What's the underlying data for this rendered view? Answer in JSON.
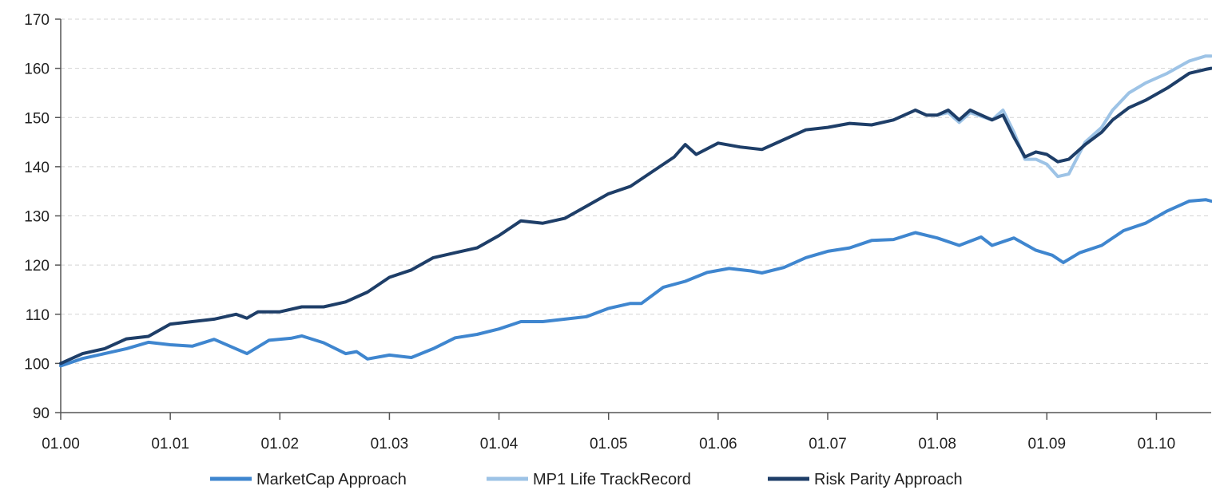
{
  "chart_data": {
    "type": "line",
    "title": "",
    "xlabel": "",
    "ylabel": "",
    "ylim": [
      90,
      170
    ],
    "yticks": [
      90,
      100,
      110,
      120,
      130,
      140,
      150,
      160,
      170
    ],
    "xlim": [
      0,
      10.5
    ],
    "xtick_values": [
      0,
      1,
      2,
      3,
      4,
      5,
      6,
      7,
      8,
      9,
      10
    ],
    "xtick_labels": [
      "01.00",
      "01.01",
      "01.02",
      "01.03",
      "01.04",
      "01.05",
      "01.06",
      "01.07",
      "01.08",
      "01.09",
      "01.10"
    ],
    "grid": "horizontal dashed",
    "legend_position": "bottom",
    "series": [
      {
        "name": "MarketCap Approach",
        "color": "#3f86cf",
        "points": [
          [
            0,
            99.5
          ],
          [
            0.2,
            101
          ],
          [
            0.4,
            102
          ],
          [
            0.6,
            103
          ],
          [
            0.8,
            104.3
          ],
          [
            1,
            103.8
          ],
          [
            1.2,
            103.5
          ],
          [
            1.4,
            104.9
          ],
          [
            1.7,
            102
          ],
          [
            1.9,
            104.7
          ],
          [
            2.1,
            105.1
          ],
          [
            2.2,
            105.6
          ],
          [
            2.4,
            104.2
          ],
          [
            2.6,
            102
          ],
          [
            2.7,
            102.4
          ],
          [
            2.8,
            100.9
          ],
          [
            3,
            101.7
          ],
          [
            3.2,
            101.2
          ],
          [
            3.4,
            103
          ],
          [
            3.6,
            105.2
          ],
          [
            3.8,
            105.9
          ],
          [
            4,
            107
          ],
          [
            4.2,
            108.5
          ],
          [
            4.4,
            108.5
          ],
          [
            4.6,
            109
          ],
          [
            4.8,
            109.5
          ],
          [
            5,
            111.2
          ],
          [
            5.2,
            112.2
          ],
          [
            5.3,
            112.2
          ],
          [
            5.5,
            115.5
          ],
          [
            5.7,
            116.7
          ],
          [
            5.9,
            118.5
          ],
          [
            6.1,
            119.3
          ],
          [
            6.3,
            118.8
          ],
          [
            6.4,
            118.4
          ],
          [
            6.6,
            119.5
          ],
          [
            6.8,
            121.5
          ],
          [
            7,
            122.8
          ],
          [
            7.2,
            123.5
          ],
          [
            7.4,
            125
          ],
          [
            7.6,
            125.2
          ],
          [
            7.8,
            126.6
          ],
          [
            8,
            125.5
          ],
          [
            8.2,
            124
          ],
          [
            8.4,
            125.7
          ],
          [
            8.5,
            124
          ],
          [
            8.7,
            125.5
          ],
          [
            8.9,
            123
          ],
          [
            9.05,
            122
          ],
          [
            9.15,
            120.5
          ],
          [
            9.3,
            122.5
          ],
          [
            9.5,
            124
          ],
          [
            9.7,
            127
          ],
          [
            9.9,
            128.5
          ],
          [
            10.1,
            131
          ],
          [
            10.3,
            133
          ],
          [
            10.45,
            133.3
          ],
          [
            10.5,
            133
          ]
        ]
      },
      {
        "name": "MP1 Life TrackRecord",
        "color": "#9dc3e6",
        "points": [
          [
            8.0,
            150.5
          ],
          [
            8.1,
            151
          ],
          [
            8.2,
            149
          ],
          [
            8.3,
            151
          ],
          [
            8.5,
            149.5
          ],
          [
            8.6,
            151.5
          ],
          [
            8.7,
            147
          ],
          [
            8.8,
            141.5
          ],
          [
            8.9,
            141.5
          ],
          [
            9.0,
            140.5
          ],
          [
            9.1,
            138
          ],
          [
            9.2,
            138.5
          ],
          [
            9.35,
            145
          ],
          [
            9.5,
            148
          ],
          [
            9.6,
            151.5
          ],
          [
            9.75,
            155
          ],
          [
            9.9,
            157
          ],
          [
            10.1,
            159
          ],
          [
            10.3,
            161.5
          ],
          [
            10.45,
            162.5
          ],
          [
            10.5,
            162.5
          ]
        ]
      },
      {
        "name": "Risk Parity Approach",
        "color": "#1e3e68",
        "points": [
          [
            0,
            100
          ],
          [
            0.2,
            102
          ],
          [
            0.4,
            103
          ],
          [
            0.6,
            105
          ],
          [
            0.8,
            105.5
          ],
          [
            1,
            108
          ],
          [
            1.2,
            108.5
          ],
          [
            1.4,
            109
          ],
          [
            1.6,
            110
          ],
          [
            1.7,
            109.2
          ],
          [
            1.8,
            110.5
          ],
          [
            2,
            110.5
          ],
          [
            2.2,
            111.5
          ],
          [
            2.4,
            111.5
          ],
          [
            2.6,
            112.5
          ],
          [
            2.8,
            114.5
          ],
          [
            3,
            117.5
          ],
          [
            3.2,
            119
          ],
          [
            3.4,
            121.5
          ],
          [
            3.6,
            122.5
          ],
          [
            3.8,
            123.5
          ],
          [
            4,
            126
          ],
          [
            4.2,
            129
          ],
          [
            4.4,
            128.5
          ],
          [
            4.6,
            129.5
          ],
          [
            4.8,
            132
          ],
          [
            5,
            134.5
          ],
          [
            5.2,
            136
          ],
          [
            5.4,
            139
          ],
          [
            5.6,
            142
          ],
          [
            5.7,
            144.5
          ],
          [
            5.8,
            142.5
          ],
          [
            6,
            144.8
          ],
          [
            6.2,
            144
          ],
          [
            6.4,
            143.5
          ],
          [
            6.6,
            145.5
          ],
          [
            6.8,
            147.5
          ],
          [
            7,
            148
          ],
          [
            7.2,
            148.8
          ],
          [
            7.4,
            148.5
          ],
          [
            7.6,
            149.5
          ],
          [
            7.8,
            151.5
          ],
          [
            7.9,
            150.5
          ],
          [
            8.0,
            150.5
          ],
          [
            8.1,
            151.5
          ],
          [
            8.2,
            149.5
          ],
          [
            8.3,
            151.5
          ],
          [
            8.5,
            149.5
          ],
          [
            8.6,
            150.5
          ],
          [
            8.7,
            146
          ],
          [
            8.8,
            142
          ],
          [
            8.9,
            143
          ],
          [
            9.0,
            142.5
          ],
          [
            9.1,
            141
          ],
          [
            9.2,
            141.5
          ],
          [
            9.35,
            144.5
          ],
          [
            9.5,
            147
          ],
          [
            9.6,
            149.5
          ],
          [
            9.75,
            152
          ],
          [
            9.9,
            153.5
          ],
          [
            10.1,
            156
          ],
          [
            10.3,
            159
          ],
          [
            10.45,
            159.8
          ],
          [
            10.5,
            160
          ]
        ]
      }
    ]
  }
}
